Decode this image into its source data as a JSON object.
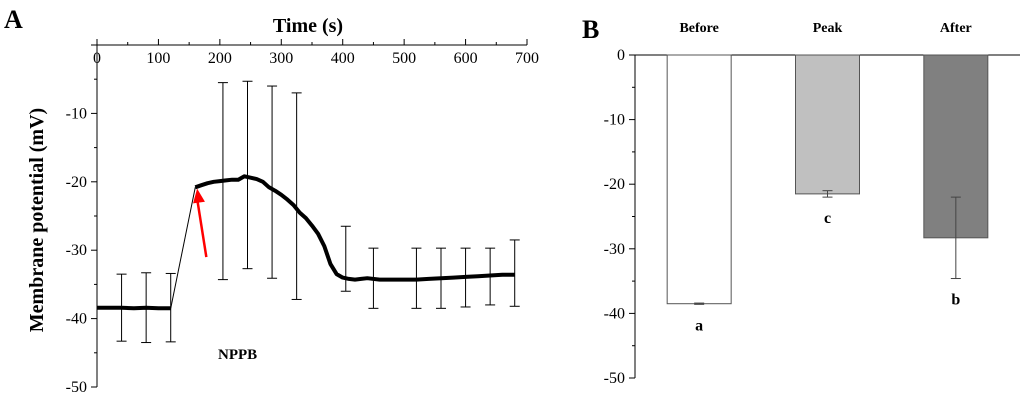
{
  "chart_data": [
    {
      "panel": "A",
      "type": "line",
      "title": "",
      "xlabel": "Time (s)",
      "ylabel": "Membrane potential (mV)",
      "xlim": [
        0,
        700
      ],
      "ylim": [
        -50,
        0
      ],
      "xticks": [
        0,
        100,
        200,
        300,
        400,
        500,
        600,
        700
      ],
      "yticks": [
        0,
        -10,
        -20,
        -30,
        -40,
        -50
      ],
      "x_axis_position": "top",
      "series": [
        {
          "name": "membrane potential",
          "x": [
            0,
            20,
            40,
            60,
            80,
            100,
            120,
            160,
            170,
            180,
            190,
            200,
            210,
            220,
            230,
            240,
            250,
            260,
            270,
            280,
            290,
            300,
            310,
            320,
            330,
            340,
            350,
            360,
            370,
            380,
            390,
            400,
            410,
            420,
            430,
            440,
            460,
            480,
            500,
            520,
            540,
            560,
            580,
            600,
            620,
            640,
            660,
            680
          ],
          "y": [
            -38.4,
            -38.4,
            -38.4,
            -38.5,
            -38.4,
            -38.5,
            -38.5,
            -20.8,
            -20.5,
            -20.2,
            -20.0,
            -19.9,
            -19.8,
            -19.7,
            -19.7,
            -19.2,
            -19.4,
            -19.6,
            -20.0,
            -20.8,
            -21.3,
            -21.9,
            -22.6,
            -23.4,
            -24.5,
            -25.3,
            -26.4,
            -27.6,
            -29.4,
            -32.0,
            -33.5,
            -34.0,
            -34.2,
            -34.3,
            -34.2,
            -34.1,
            -34.3,
            -34.3,
            -34.3,
            -34.3,
            -34.2,
            -34.1,
            -34.0,
            -33.9,
            -33.8,
            -33.7,
            -33.6,
            -33.6
          ]
        }
      ],
      "error_bars": [
        {
          "x": 40,
          "lower": -43.3,
          "upper": -33.5
        },
        {
          "x": 80,
          "lower": -43.5,
          "upper": -33.3
        },
        {
          "x": 120,
          "lower": -43.4,
          "upper": -33.4
        },
        {
          "x": 205,
          "lower": -34.3,
          "upper": -5.5
        },
        {
          "x": 245,
          "lower": -32.7,
          "upper": -5.3
        },
        {
          "x": 285,
          "lower": -34.1,
          "upper": -6.0
        },
        {
          "x": 325,
          "lower": -37.2,
          "upper": -7.0
        },
        {
          "x": 405,
          "lower": -36.0,
          "upper": -26.5
        },
        {
          "x": 450,
          "lower": -38.5,
          "upper": -29.7
        },
        {
          "x": 520,
          "lower": -38.5,
          "upper": -29.7
        },
        {
          "x": 560,
          "lower": -38.5,
          "upper": -29.7
        },
        {
          "x": 600,
          "lower": -38.3,
          "upper": -29.7
        },
        {
          "x": 640,
          "lower": -38.0,
          "upper": -29.7
        },
        {
          "x": 680,
          "lower": -38.2,
          "upper": -28.5
        }
      ],
      "annotation": {
        "text": "NPPB",
        "arrow_from": [
          178,
          -31.0
        ],
        "arrow_to": [
          163,
          -21.0
        ],
        "color": "#ff0000"
      }
    },
    {
      "panel": "B",
      "type": "bar",
      "title": "",
      "xlabel": "",
      "ylabel": "",
      "categories": [
        "Before",
        "Peak",
        "After"
      ],
      "values": [
        -38.5,
        -21.5,
        -28.3
      ],
      "errors": [
        0.1,
        0.5,
        6.3
      ],
      "significance": [
        "a",
        "c",
        "b"
      ],
      "colors": [
        "#ffffff",
        "#c0c0c0",
        "#808080"
      ],
      "ylim": [
        -50,
        0
      ],
      "yticks": [
        0,
        -10,
        -20,
        -30,
        -40,
        -50
      ]
    }
  ]
}
